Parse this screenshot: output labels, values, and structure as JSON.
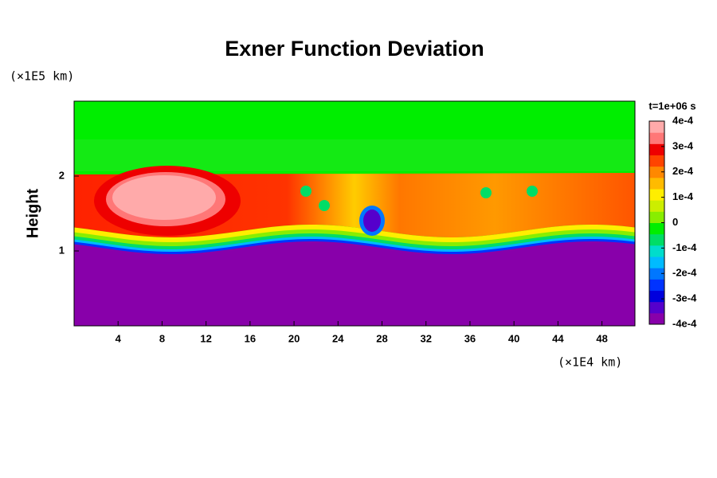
{
  "chart_data": {
    "type": "contour",
    "title": "Exner Function Deviation",
    "y_label": "Height",
    "y_unit": "(×1E5 km)",
    "x_unit": "(×1E4 km)",
    "time_label": "t=1e+06 s",
    "xlim": [
      0,
      51
    ],
    "xticks": [
      4,
      8,
      12,
      16,
      20,
      24,
      28,
      32,
      36,
      40,
      44,
      48
    ],
    "ylim": [
      0,
      3
    ],
    "yticks": [
      1,
      2
    ],
    "clim": [
      -0.0004,
      0.0004
    ],
    "cticks": [
      {
        "value": 0.0004,
        "label": "4e-4"
      },
      {
        "value": 0.0003,
        "label": "3e-4"
      },
      {
        "value": 0.0002,
        "label": "2e-4"
      },
      {
        "value": 0.0001,
        "label": "1e-4"
      },
      0,
      {
        "value": -0.0001,
        "label": "-1e-4"
      },
      {
        "value": -0.0002,
        "label": "-2e-4"
      },
      {
        "value": -0.0003,
        "label": "-3e-4"
      },
      {
        "value": -0.0004,
        "label": "-4e-4"
      }
    ],
    "colormap": [
      "#8800aa",
      "#5500cc",
      "#0000dd",
      "#0033ff",
      "#0077ff",
      "#00bbff",
      "#00ddcc",
      "#00dd66",
      "#00ee00",
      "#88ee00",
      "#ccee00",
      "#ffee00",
      "#ffbb00",
      "#ff8800",
      "#ff4400",
      "#ee0000",
      "#ff7777",
      "#ffaaaa"
    ]
  }
}
